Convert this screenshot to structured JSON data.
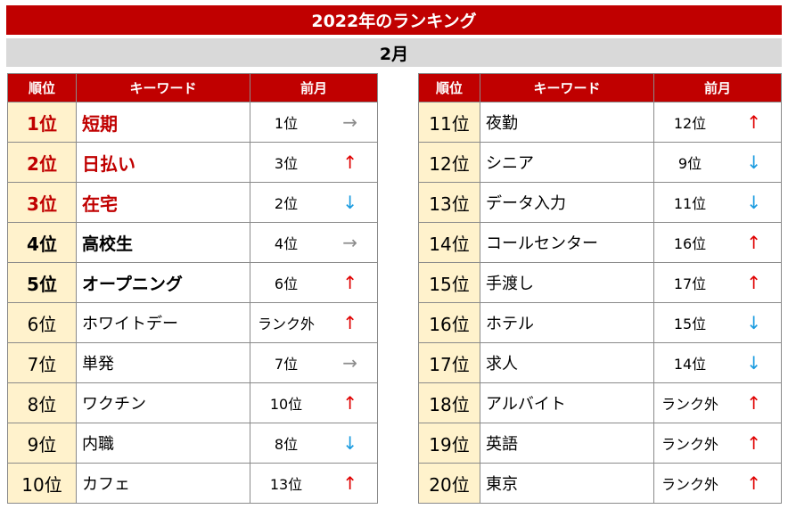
{
  "title": "2022年のランキング",
  "month": "2月",
  "headers": {
    "rank": "順位",
    "keyword": "キーワード",
    "prev": "前月"
  },
  "colors": {
    "header_red": "#c00000",
    "rank_bg": "#fff2cc",
    "up": "#e00000",
    "down": "#1a9be0",
    "same": "#8c8c8c"
  },
  "left_rows": [
    {
      "rank": "1位",
      "keyword": "短期",
      "prev": "1位",
      "arrow": "→",
      "dir": "same",
      "hl": "red"
    },
    {
      "rank": "2位",
      "keyword": "日払い",
      "prev": "3位",
      "arrow": "↑",
      "dir": "up",
      "hl": "red"
    },
    {
      "rank": "3位",
      "keyword": "在宅",
      "prev": "2位",
      "arrow": "↓",
      "dir": "down",
      "hl": "red"
    },
    {
      "rank": "4位",
      "keyword": "高校生",
      "prev": "4位",
      "arrow": "→",
      "dir": "same",
      "hl": "black"
    },
    {
      "rank": "5位",
      "keyword": "オープニング",
      "prev": "6位",
      "arrow": "↑",
      "dir": "up",
      "hl": "black"
    },
    {
      "rank": "6位",
      "keyword": "ホワイトデー",
      "prev": "ランク外",
      "arrow": "↑",
      "dir": "up",
      "hl": ""
    },
    {
      "rank": "7位",
      "keyword": "単発",
      "prev": "7位",
      "arrow": "→",
      "dir": "same",
      "hl": ""
    },
    {
      "rank": "8位",
      "keyword": "ワクチン",
      "prev": "10位",
      "arrow": "↑",
      "dir": "up",
      "hl": ""
    },
    {
      "rank": "9位",
      "keyword": "内職",
      "prev": "8位",
      "arrow": "↓",
      "dir": "down",
      "hl": ""
    },
    {
      "rank": "10位",
      "keyword": "カフェ",
      "prev": "13位",
      "arrow": "↑",
      "dir": "up",
      "hl": ""
    }
  ],
  "right_rows": [
    {
      "rank": "11位",
      "keyword": "夜勤",
      "prev": "12位",
      "arrow": "↑",
      "dir": "up",
      "hl": ""
    },
    {
      "rank": "12位",
      "keyword": "シニア",
      "prev": "9位",
      "arrow": "↓",
      "dir": "down",
      "hl": ""
    },
    {
      "rank": "13位",
      "keyword": "データ入力",
      "prev": "11位",
      "arrow": "↓",
      "dir": "down",
      "hl": ""
    },
    {
      "rank": "14位",
      "keyword": "コールセンター",
      "prev": "16位",
      "arrow": "↑",
      "dir": "up",
      "hl": ""
    },
    {
      "rank": "15位",
      "keyword": "手渡し",
      "prev": "17位",
      "arrow": "↑",
      "dir": "up",
      "hl": ""
    },
    {
      "rank": "16位",
      "keyword": "ホテル",
      "prev": "15位",
      "arrow": "↓",
      "dir": "down",
      "hl": ""
    },
    {
      "rank": "17位",
      "keyword": "求人",
      "prev": "14位",
      "arrow": "↓",
      "dir": "down",
      "hl": ""
    },
    {
      "rank": "18位",
      "keyword": "アルバイト",
      "prev": "ランク外",
      "arrow": "↑",
      "dir": "up",
      "hl": ""
    },
    {
      "rank": "19位",
      "keyword": "英語",
      "prev": "ランク外",
      "arrow": "↑",
      "dir": "up",
      "hl": ""
    },
    {
      "rank": "20位",
      "keyword": "東京",
      "prev": "ランク外",
      "arrow": "↑",
      "dir": "up",
      "hl": ""
    }
  ]
}
